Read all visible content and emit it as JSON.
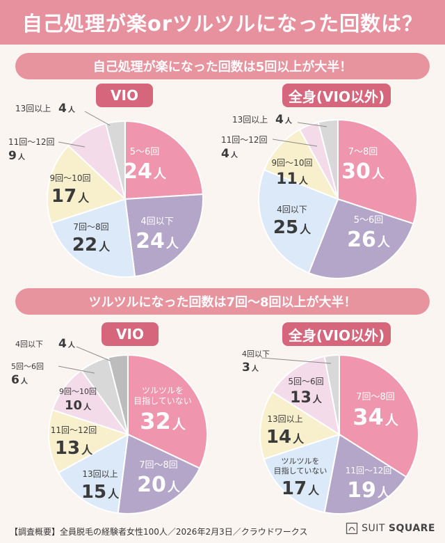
{
  "title": "自己処理が楽orツルツルになった回数は？",
  "sections": [
    {
      "heading": "自己処理が楽になった回数は5回以上が大半！"
    },
    {
      "heading": "ツルツルになった回数は7回〜8回以上が大半！"
    }
  ],
  "unit": "人",
  "colors": {
    "pink": "#ef95ae",
    "purple": "#b4a6c9",
    "blue": "#dce9f8",
    "yellow": "#f8f0cc",
    "lightpink": "#f4dbe9",
    "gray": "#d8d8d8"
  },
  "chart_data": [
    {
      "type": "pie",
      "title": "VIO",
      "slices": [
        {
          "label": "5〜6回",
          "value": 24,
          "color": "#ef95ae"
        },
        {
          "label": "4回以下",
          "value": 24,
          "color": "#b4a6c9"
        },
        {
          "label": "7回〜8回",
          "value": 22,
          "color": "#dce9f8"
        },
        {
          "label": "9回〜10回",
          "value": 17,
          "color": "#f8f0cc"
        },
        {
          "label": "11回〜12回",
          "value": 9,
          "color": "#f4dbe9"
        },
        {
          "label": "13回以上",
          "value": 4,
          "color": "#d8d8d8"
        }
      ]
    },
    {
      "type": "pie",
      "title": "全身(VIO以外)",
      "slices": [
        {
          "label": "7〜8回",
          "value": 30,
          "color": "#ef95ae"
        },
        {
          "label": "5〜6回",
          "value": 26,
          "color": "#b4a6c9"
        },
        {
          "label": "4回以下",
          "value": 25,
          "color": "#dce9f8"
        },
        {
          "label": "9回〜10回",
          "value": 11,
          "color": "#f8f0cc"
        },
        {
          "label": "11回〜12回",
          "value": 4,
          "color": "#f4dbe9"
        },
        {
          "label": "13回以上",
          "value": 4,
          "color": "#d8d8d8"
        }
      ]
    },
    {
      "type": "pie",
      "title": "VIO",
      "slices": [
        {
          "label": "ツルツルを\n目指していない",
          "value": 32,
          "color": "#ef95ae"
        },
        {
          "label": "7回〜8回",
          "value": 20,
          "color": "#b4a6c9"
        },
        {
          "label": "13回以上",
          "value": 15,
          "color": "#dce9f8"
        },
        {
          "label": "11回〜12回",
          "value": 13,
          "color": "#f8f0cc"
        },
        {
          "label": "9回〜10回",
          "value": 10,
          "color": "#f4dbe9"
        },
        {
          "label": "5回〜6回",
          "value": 6,
          "color": "#d8d8d8"
        },
        {
          "label": "4回以下",
          "value": 4,
          "color": "#bcbcbc"
        }
      ]
    },
    {
      "type": "pie",
      "title": "全身(VIO以外)",
      "slices": [
        {
          "label": "7回〜8回",
          "value": 34,
          "color": "#ef95ae"
        },
        {
          "label": "11回〜12回",
          "value": 19,
          "color": "#b4a6c9"
        },
        {
          "label": "ツルツルを\n目指していない",
          "value": 17,
          "color": "#dce9f8"
        },
        {
          "label": "13回以上",
          "value": 14,
          "color": "#f8f0cc"
        },
        {
          "label": "5回〜6回",
          "value": 13,
          "color": "#f4dbe9"
        },
        {
          "label": "4回以下",
          "value": 3,
          "color": "#d8d8d8"
        }
      ]
    }
  ],
  "footer": {
    "note": "【調査概要】全員脱毛の経験者女性100人／2026年2月3日／クラウドワークス",
    "brand_light": "SUIT",
    "brand_bold": "SQUARE"
  }
}
